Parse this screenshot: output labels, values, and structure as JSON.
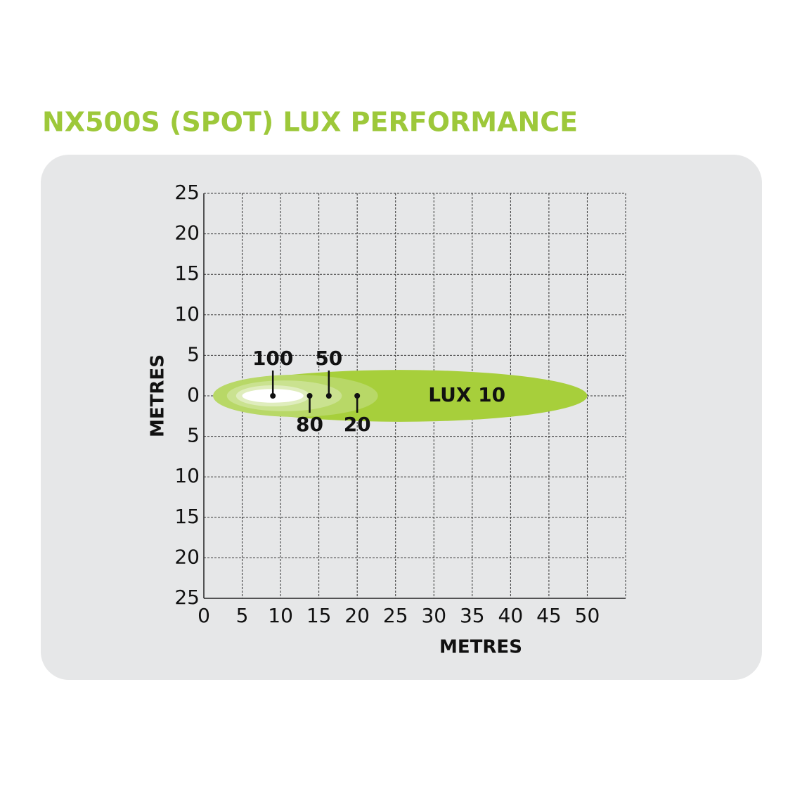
{
  "chart_data": {
    "type": "beam",
    "title": "NX500S (SPOT) LUX PERFORMANCE",
    "x_label": "METRES",
    "y_label": "METRES",
    "xlim": [
      0,
      55
    ],
    "ylim": [
      -25,
      25
    ],
    "xticks": [
      0,
      5,
      10,
      15,
      20,
      25,
      30,
      35,
      40,
      45,
      50
    ],
    "yticks": [
      {
        "value": -25,
        "label": "25"
      },
      {
        "value": -20,
        "label": "20"
      },
      {
        "value": -15,
        "label": "15"
      },
      {
        "value": -10,
        "label": "10"
      },
      {
        "value": -5,
        "label": "5"
      },
      0,
      5,
      10,
      15,
      20,
      25
    ],
    "grid": true,
    "contours": [
      {
        "name": "LUX 10",
        "start": 1.2,
        "reach": 50,
        "half_width": 3.2,
        "color": "#a7cf3b",
        "point": 34.3,
        "side": "inside"
      },
      {
        "name": "20",
        "start": 1.2,
        "reach": 22.7,
        "half_width": 2.6,
        "color": "#b8d867",
        "point": 20,
        "side": "below"
      },
      {
        "name": "50",
        "start": 3,
        "reach": 18,
        "half_width": 1.9,
        "color": "#cae290",
        "point": 16.3,
        "side": "above"
      },
      {
        "name": "80",
        "start": 4.2,
        "reach": 13.8,
        "half_width": 1.3,
        "color": "#dfedbd",
        "point": 13.8,
        "side": "below"
      },
      {
        "name": "100",
        "start": 5,
        "reach": 13,
        "half_width": 0.85,
        "color": "#ffffff",
        "point": 9,
        "side": "above"
      }
    ]
  }
}
